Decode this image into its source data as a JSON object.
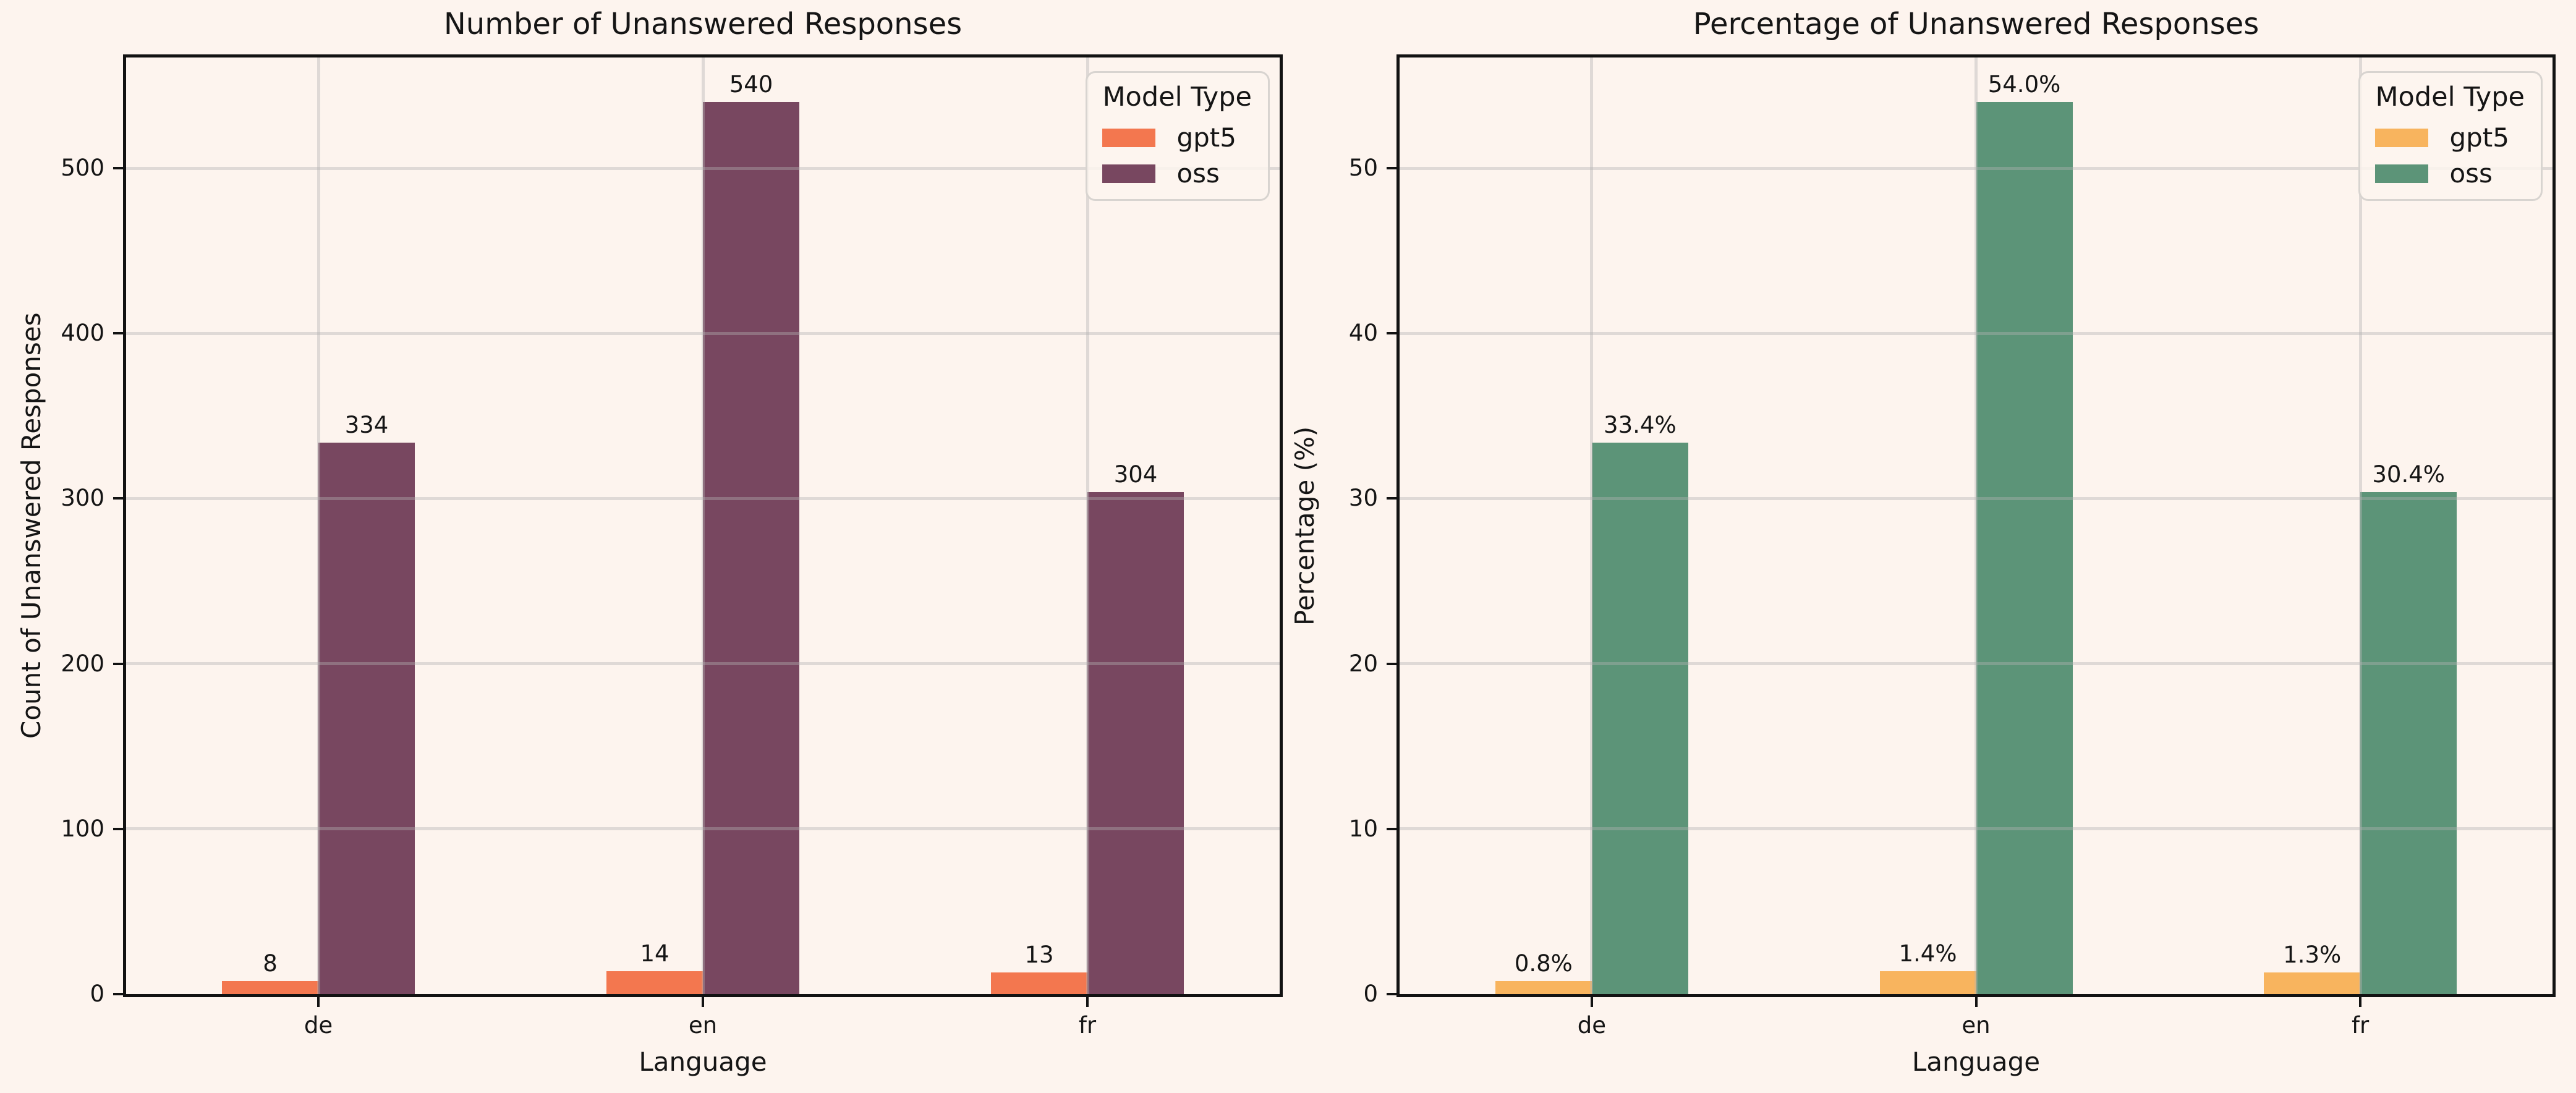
{
  "figure": {
    "background": "#fdf4ee",
    "spine_color": "#121212",
    "grid_color": "rgba(178,178,178,0.4)",
    "text_color": "#151515"
  },
  "chart_data": [
    {
      "type": "bar",
      "title": "Number of Unanswered Responses",
      "xlabel": "Language",
      "ylabel": "Count of Unanswered Responses",
      "categories": [
        "de",
        "en",
        "fr"
      ],
      "series": [
        {
          "name": "gpt5",
          "color": "#f3774f",
          "values": [
            8,
            14,
            13
          ],
          "labels": [
            "8",
            "14",
            "13"
          ]
        },
        {
          "name": "oss",
          "color": "#784760",
          "values": [
            334,
            540,
            304
          ],
          "labels": [
            "334",
            "540",
            "304"
          ]
        }
      ],
      "yticks": [
        0,
        100,
        200,
        300,
        400,
        500
      ],
      "ylim": [
        0,
        567
      ],
      "grid": true,
      "legend_title": "Model Type",
      "legend_position": "upper right"
    },
    {
      "type": "bar",
      "title": "Percentage of Unanswered Responses",
      "xlabel": "Language",
      "ylabel": "Percentage (%)",
      "categories": [
        "de",
        "en",
        "fr"
      ],
      "series": [
        {
          "name": "gpt5",
          "color": "#f8b45e",
          "values": [
            0.8,
            1.4,
            1.3
          ],
          "labels": [
            "0.8%",
            "1.4%",
            "1.3%"
          ]
        },
        {
          "name": "oss",
          "color": "#5c9478",
          "values": [
            33.4,
            54.0,
            30.4
          ],
          "labels": [
            "33.4%",
            "54.0%",
            "30.4%"
          ]
        }
      ],
      "yticks": [
        0,
        10,
        20,
        30,
        40,
        50
      ],
      "ylim": [
        0,
        56.7
      ],
      "grid": true,
      "legend_title": "Model Type",
      "legend_position": "upper right"
    }
  ]
}
